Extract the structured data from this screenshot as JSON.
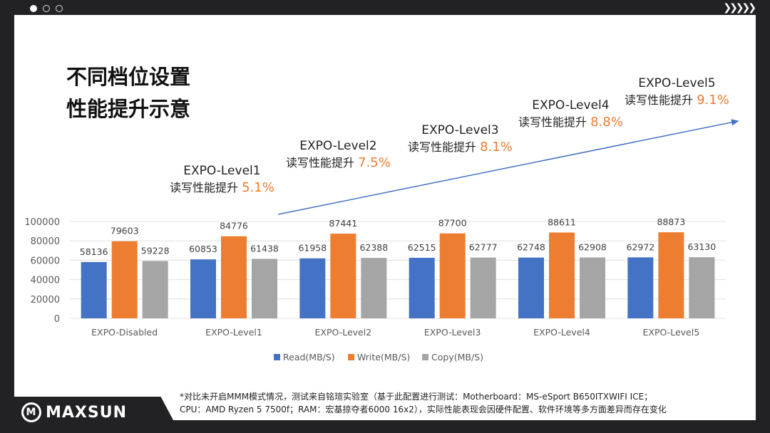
{
  "header": {
    "slide_dots": 3,
    "active_dot": 0,
    "chevrons": "❯❯❯❯❯"
  },
  "title": {
    "line1": "不同档位设置",
    "line2": "性能提升示意"
  },
  "annotations": [
    {
      "level": "EXPO-Level1",
      "prefix": "读写性能提升",
      "pct": "5.1%"
    },
    {
      "level": "EXPO-Level2",
      "prefix": "读写性能提升",
      "pct": "7.5%"
    },
    {
      "level": "EXPO-Level3",
      "prefix": "读写性能提升",
      "pct": "8.1%"
    },
    {
      "level": "EXPO-Level4",
      "prefix": "读写性能提升",
      "pct": "8.8%"
    },
    {
      "level": "EXPO-Level5",
      "prefix": "读写性能提升",
      "pct": "9.1%"
    }
  ],
  "chart_data": {
    "type": "bar",
    "categories": [
      "EXPO-Disabled",
      "EXPO-Level1",
      "EXPO-Level2",
      "EXPO-Level3",
      "EXPO-Level4",
      "EXPO-Level5"
    ],
    "series": [
      {
        "name": "Read(MB/S)",
        "color": "#4472c4",
        "values": [
          58136,
          60853,
          61958,
          62515,
          62748,
          62972
        ]
      },
      {
        "name": "Write(MB/S)",
        "color": "#ed7d31",
        "values": [
          79603,
          84776,
          87441,
          87700,
          88611,
          88873
        ]
      },
      {
        "name": "Copy(MB/S)",
        "color": "#a5a5a5",
        "values": [
          59228,
          61438,
          62388,
          62777,
          62908,
          63130
        ]
      }
    ],
    "ylim": [
      0,
      100000
    ],
    "yticks": [
      0,
      20000,
      40000,
      60000,
      80000,
      100000
    ],
    "grid": true,
    "legend": "bottom",
    "trend_arrow_color": "#4472c4"
  },
  "footnote": {
    "line1": "*对比未开启MMM模式情况，测试来自铭瑄实验室（基于此配置进行测试：Motherboard：MS-eSport B650ITXWIFI ICE；",
    "line2": "CPU：AMD Ryzen 5 7500f；RAM：宏基掠夺者6000 16x2），实际性能表现会因硬件配置、软件环境等多方面差异而存在变化"
  },
  "logo": {
    "text": "MAXSUN"
  }
}
